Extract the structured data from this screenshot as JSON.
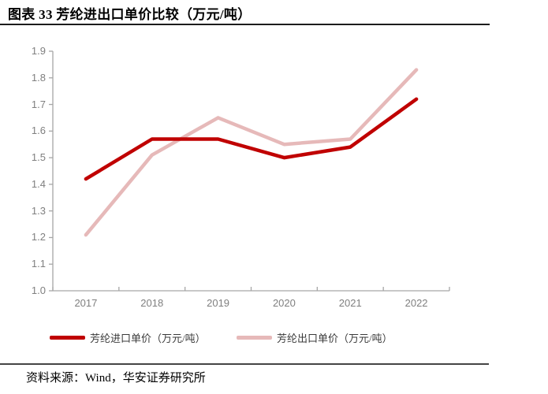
{
  "page": {
    "title": "图表 33 芳纶进出口单价比较（万元/吨）",
    "source": "资料来源：Wind，华安证券研究所"
  },
  "chart_data": {
    "type": "line",
    "title": "图表 33 芳纶进出口单价比较（万元/吨）",
    "categories": [
      "2017",
      "2018",
      "2019",
      "2020",
      "2021",
      "2022"
    ],
    "series": [
      {
        "name": "芳纶进口单价（万元/吨）",
        "color": "#c00000",
        "values": [
          1.42,
          1.57,
          1.57,
          1.5,
          1.54,
          1.72
        ]
      },
      {
        "name": "芳纶出口单价（万元/吨）",
        "color": "#e6b9b9",
        "values": [
          1.21,
          1.51,
          1.65,
          1.55,
          1.57,
          1.83
        ]
      }
    ],
    "xlabel": "",
    "ylabel": "",
    "ylim": [
      1.0,
      1.9
    ],
    "y_tick_step": 0.1,
    "y_tick_labels": [
      "1.0",
      "1.1",
      "1.2",
      "1.3",
      "1.4",
      "1.5",
      "1.6",
      "1.7",
      "1.8",
      "1.9"
    ],
    "grid": false,
    "legend_position": "bottom",
    "axis_color": "#a6a6a6",
    "tick_label_color": "#7f7f7f"
  }
}
